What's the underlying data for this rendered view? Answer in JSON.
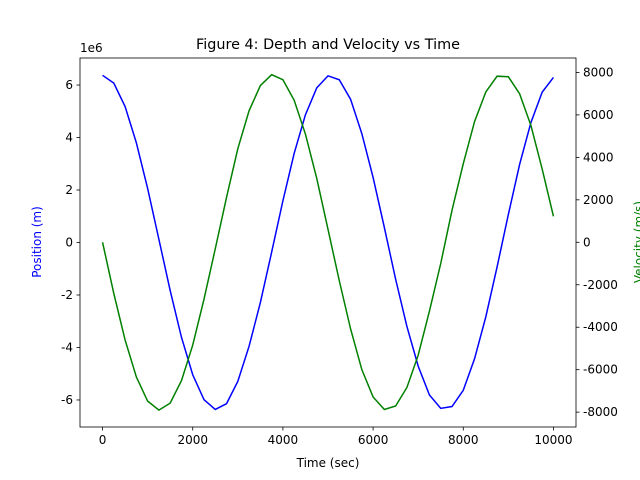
{
  "chart_data": {
    "type": "line",
    "title": "Figure 4: Depth and Velocity vs Time",
    "xlabel": "Time (sec)",
    "ylabel": "Position (m)",
    "y2label": "Velocity (m/s)",
    "y_offset_label": "1e6",
    "ylabel_color": "blue",
    "y2label_color": "green",
    "x": [
      0,
      250,
      500,
      750,
      1000,
      1250,
      1500,
      1750,
      2000,
      2250,
      2500,
      2750,
      3000,
      3250,
      3500,
      3750,
      4000,
      4250,
      4500,
      4750,
      5000,
      5250,
      5500,
      5750,
      6000,
      6250,
      6500,
      6750,
      7000,
      7250,
      7500,
      7750,
      8000,
      8250,
      8500,
      8750,
      9000,
      9250,
      9500,
      9750,
      10000
    ],
    "series": [
      {
        "name": "Position (m)",
        "color": "blue",
        "axis": "y",
        "values": [
          6.37,
          6.07,
          5.18,
          3.8,
          2.06,
          0.12,
          -1.83,
          -3.61,
          -5.04,
          -5.99,
          -6.36,
          -6.14,
          -5.29,
          -3.95,
          -2.29,
          -0.37,
          1.59,
          3.4,
          4.87,
          5.89,
          6.35,
          6.2,
          5.46,
          4.15,
          2.48,
          0.57,
          -1.4,
          -3.2,
          -4.71,
          -5.81,
          -6.32,
          -6.25,
          -5.63,
          -4.43,
          -2.83,
          -0.93,
          1.07,
          2.98,
          4.57,
          5.73,
          6.29
        ]
      },
      {
        "name": "Velocity (m/s)",
        "color": "green",
        "axis": "y2",
        "values": [
          0,
          -2415,
          -4599,
          -6343,
          -7482,
          -7905,
          -7574,
          -6518,
          -4840,
          -2681,
          -305,
          2117,
          4410,
          6199,
          7380,
          7894,
          7657,
          6690,
          5091,
          3011,
          610,
          -1805,
          -4072,
          -5994,
          -7284,
          -7875,
          -7712,
          -6839,
          -5319,
          -3242,
          -999,
          1505,
          3700,
          5687,
          7081,
          7823,
          7796,
          6990,
          5505,
          3448,
          1222
        ]
      }
    ],
    "xlim": [
      -500,
      10500
    ],
    "xticks": [
      0,
      2000,
      4000,
      6000,
      8000,
      10000
    ],
    "ylim": [
      -7.03,
      7.03
    ],
    "yticks": [
      -6,
      -4,
      -2,
      0,
      2,
      4,
      6
    ],
    "y2lim": [
      -8700,
      8680
    ],
    "y2ticks": [
      -8000,
      -6000,
      -4000,
      -2000,
      0,
      2000,
      4000,
      6000,
      8000
    ]
  }
}
